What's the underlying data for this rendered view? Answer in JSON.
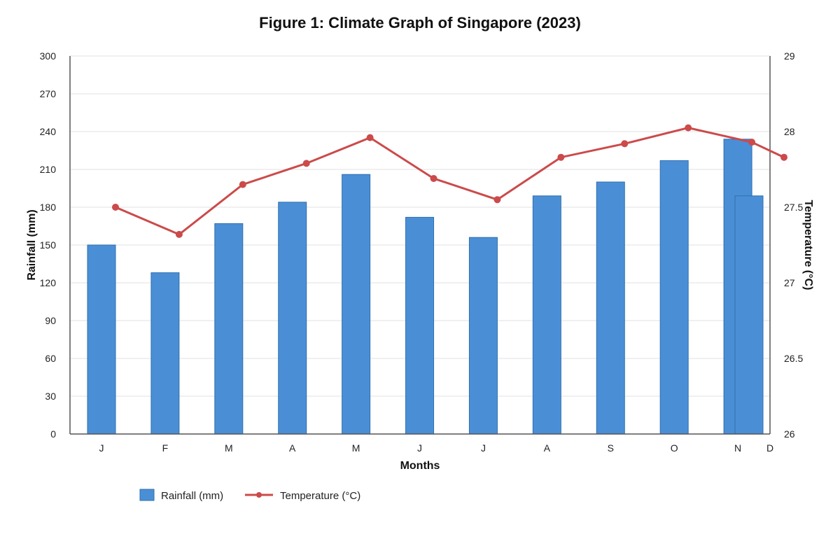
{
  "chart_data": {
    "type": "bar",
    "title": "Figure 1: Climate Graph of Singapore (2023)",
    "categories": [
      "J",
      "F",
      "M",
      "A",
      "M",
      "J",
      "J",
      "A",
      "S",
      "O",
      "N",
      "D"
    ],
    "xlabel": "Months",
    "ylabel": "Rainfall (mm)",
    "y2label": "Temperature (°C)",
    "ylim": [
      0,
      300
    ],
    "yticks": [
      "0",
      "30",
      "60",
      "90",
      "120",
      "150",
      "180",
      "210",
      "240",
      "270",
      "300"
    ],
    "y2lim": [
      26,
      29
    ],
    "y2ticks": [
      "26",
      "26.5",
      "27",
      "27.5",
      "28",
      "29"
    ],
    "grid": true,
    "legend_position": "bottom-left",
    "series": [
      {
        "name": "Rainfall (mm)",
        "type": "bar",
        "axis": "left",
        "color": "#4a8fd6",
        "values": [
          150,
          128,
          167,
          184,
          206,
          172,
          156,
          189,
          200,
          217,
          234,
          189
        ]
      },
      {
        "name": "Temperature (°C)",
        "type": "line",
        "axis": "right",
        "color": "#cc4a4a",
        "values": [
          27.5,
          27.32,
          27.65,
          27.79,
          27.96,
          27.69,
          27.55,
          27.83,
          27.92,
          28.05,
          27.93,
          27.83
        ]
      }
    ]
  }
}
